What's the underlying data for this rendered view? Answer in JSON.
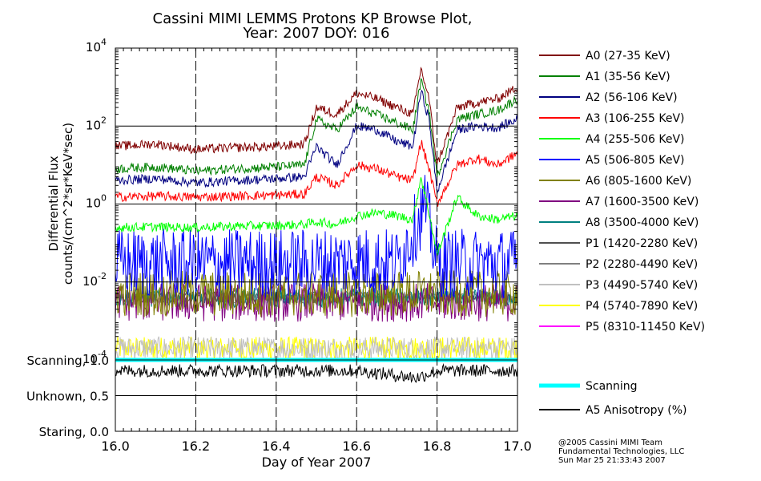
{
  "title_line1": "Cassini MIMI LEMMS Protons KP Browse Plot,",
  "title_line2": "Year: 2007 DOY: 016",
  "ylabel_line1": "Differential Flux",
  "ylabel_line2": "counts/(cm^2*sr*KeV*sec)",
  "xlabel": "Day of Year 2007",
  "credits": [
    "@2005 Cassini MIMI Team",
    "Fundamental Technologies, LLC",
    "Sun Mar 25 21:33:43 2007"
  ],
  "chart_data": [
    {
      "type": "line",
      "panel": "flux",
      "scale": "log",
      "title": "Cassini MIMI LEMMS Protons KP Browse Plot, Year: 2007 DOY: 016",
      "xlabel": "Day of Year 2007",
      "ylabel": "Differential Flux counts/(cm^2*sr*KeV*sec)",
      "xlim": [
        16.0,
        17.0
      ],
      "ylim": [
        0.0001,
        10000
      ],
      "x_ticks": [
        "16.0",
        "16.2",
        "16.4",
        "16.6",
        "16.8",
        "17.0"
      ],
      "y_ticks": [
        {
          "base": "10",
          "exp": "4",
          "value": 10000
        },
        {
          "base": "10",
          "exp": "2",
          "value": 100
        },
        {
          "base": "10",
          "exp": "0",
          "value": 1
        },
        {
          "base": "10",
          "exp": "-2",
          "value": 0.01
        },
        {
          "base": "10",
          "exp": "-4",
          "value": 0.0001
        }
      ],
      "grid": true,
      "legend_position": "right",
      "series": [
        {
          "name": "A0 (27-35 KeV)",
          "color": "#800000",
          "x": [
            16.0,
            16.1,
            16.2,
            16.3,
            16.4,
            16.47,
            16.5,
            16.55,
            16.6,
            16.65,
            16.7,
            16.74,
            16.76,
            16.78,
            16.8,
            16.85,
            16.9,
            16.95,
            17.0
          ],
          "y": [
            30,
            35,
            25,
            28,
            30,
            35,
            300,
            200,
            700,
            500,
            300,
            200,
            3000,
            500,
            10,
            300,
            400,
            500,
            1000
          ]
        },
        {
          "name": "A1 (35-56 KeV)",
          "color": "#008000",
          "x": [
            16.0,
            16.1,
            16.2,
            16.3,
            16.4,
            16.47,
            16.5,
            16.55,
            16.6,
            16.65,
            16.7,
            16.74,
            16.76,
            16.78,
            16.8,
            16.85,
            16.9,
            16.95,
            17.0
          ],
          "y": [
            8,
            9,
            7,
            8,
            9,
            10,
            150,
            80,
            300,
            200,
            120,
            80,
            1500,
            250,
            5,
            150,
            200,
            250,
            500
          ]
        },
        {
          "name": "A2 (56-106 KeV)",
          "color": "#000080",
          "x": [
            16.0,
            16.1,
            16.2,
            16.3,
            16.4,
            16.47,
            16.5,
            16.55,
            16.6,
            16.65,
            16.7,
            16.74,
            16.76,
            16.78,
            16.8,
            16.85,
            16.9,
            16.95,
            17.0
          ],
          "y": [
            4,
            4.5,
            3.5,
            4,
            4.5,
            5,
            30,
            10,
            100,
            80,
            40,
            30,
            800,
            150,
            2,
            80,
            100,
            90,
            150
          ]
        },
        {
          "name": "A3 (106-255 KeV)",
          "color": "#ff0000",
          "x": [
            16.0,
            16.1,
            16.2,
            16.3,
            16.4,
            16.47,
            16.5,
            16.55,
            16.6,
            16.65,
            16.7,
            16.74,
            16.76,
            16.78,
            16.8,
            16.85,
            16.9,
            16.95,
            17.0
          ],
          "y": [
            1.5,
            1.6,
            1.5,
            1.6,
            1.7,
            1.8,
            5,
            3,
            10,
            8,
            5,
            4,
            40,
            8,
            1,
            10,
            15,
            10,
            20
          ]
        },
        {
          "name": "A4 (255-506 KeV)",
          "color": "#00ff00",
          "x": [
            16.0,
            16.1,
            16.2,
            16.3,
            16.4,
            16.47,
            16.5,
            16.55,
            16.6,
            16.65,
            16.7,
            16.74,
            16.76,
            16.78,
            16.8,
            16.85,
            16.9,
            16.95,
            17.0
          ],
          "y": [
            0.25,
            0.26,
            0.25,
            0.27,
            0.28,
            0.3,
            0.35,
            0.3,
            0.5,
            0.6,
            0.5,
            0.4,
            5,
            0.6,
            0.05,
            1.5,
            0.5,
            0.4,
            0.5
          ]
        },
        {
          "name": "A5 (506-805 KeV)",
          "color": "#0000ff",
          "x": [
            16.0,
            16.1,
            16.2,
            16.3,
            16.4,
            16.5,
            16.6,
            16.7,
            16.75,
            16.77,
            16.8,
            16.9,
            17.0
          ],
          "y": [
            0.03,
            0.03,
            0.03,
            0.03,
            0.03,
            0.03,
            0.035,
            0.03,
            0.3,
            1,
            0.03,
            0.03,
            0.03
          ]
        },
        {
          "name": "A6 (805-1600 KeV)",
          "color": "#808000",
          "x": [
            16.0,
            16.2,
            16.4,
            16.6,
            16.8,
            17.0
          ],
          "y": [
            0.005,
            0.005,
            0.005,
            0.005,
            0.005,
            0.005
          ]
        },
        {
          "name": "A7 (1600-3500 KeV)",
          "color": "#800080",
          "x": [
            16.0,
            16.2,
            16.4,
            16.6,
            16.8,
            17.0
          ],
          "y": [
            0.003,
            0.003,
            0.003,
            0.003,
            0.003,
            0.003
          ]
        },
        {
          "name": "A8 (3500-4000 KeV)",
          "color": "#008080",
          "x": [
            16.0,
            16.2,
            16.4,
            16.6,
            16.8,
            17.0
          ],
          "y": [
            0.004,
            0.004,
            0.004,
            0.004,
            0.004,
            0.004
          ]
        },
        {
          "name": "P1 (1420-2280 KeV)",
          "color": "#505050",
          "x": [
            16.0,
            16.2,
            16.4,
            16.6,
            16.8,
            17.0
          ],
          "y": [
            0.004,
            0.004,
            0.004,
            0.004,
            0.004,
            0.004
          ]
        },
        {
          "name": "P2 (2280-4490 KeV)",
          "color": "#808080",
          "x": [
            16.0,
            16.2,
            16.4,
            16.6,
            16.8,
            17.0
          ],
          "y": [
            0.004,
            0.004,
            0.004,
            0.004,
            0.004,
            0.004
          ]
        },
        {
          "name": "P3 (4490-5740 KeV)",
          "color": "#c0c0c0",
          "x": [
            16.0,
            16.2,
            16.4,
            16.6,
            16.8,
            17.0
          ],
          "y": [
            0.0002,
            0.0002,
            0.0002,
            0.0002,
            0.0002,
            0.0002
          ]
        },
        {
          "name": "P4 (5740-7890 KeV)",
          "color": "#ffff00",
          "x": [
            16.0,
            16.2,
            16.4,
            16.6,
            16.8,
            17.0
          ],
          "y": [
            0.0002,
            0.0002,
            0.0002,
            0.0002,
            0.0002,
            0.0002
          ]
        },
        {
          "name": "P5 (8310-11450 KeV)",
          "color": "#ff00ff",
          "x": [],
          "y": []
        }
      ]
    },
    {
      "type": "line",
      "panel": "status",
      "xlim": [
        16.0,
        17.0
      ],
      "ylim": [
        0.0,
        1.0
      ],
      "y_ticks": [
        "Scanning, 1.0",
        "Unknown, 0.5",
        "Staring, 0.0"
      ],
      "legend_position": "right",
      "series": [
        {
          "name": "Scanning",
          "color": "#00ffff",
          "x": [
            16.0,
            17.0
          ],
          "y": [
            1.0,
            1.0
          ]
        },
        {
          "name": "A5 Anisotropy (%)",
          "color": "#000000",
          "x": [
            16.0,
            16.2,
            16.4,
            16.6,
            16.75,
            16.8,
            17.0
          ],
          "y": [
            0.85,
            0.85,
            0.85,
            0.85,
            0.75,
            0.85,
            0.85
          ]
        }
      ]
    }
  ]
}
